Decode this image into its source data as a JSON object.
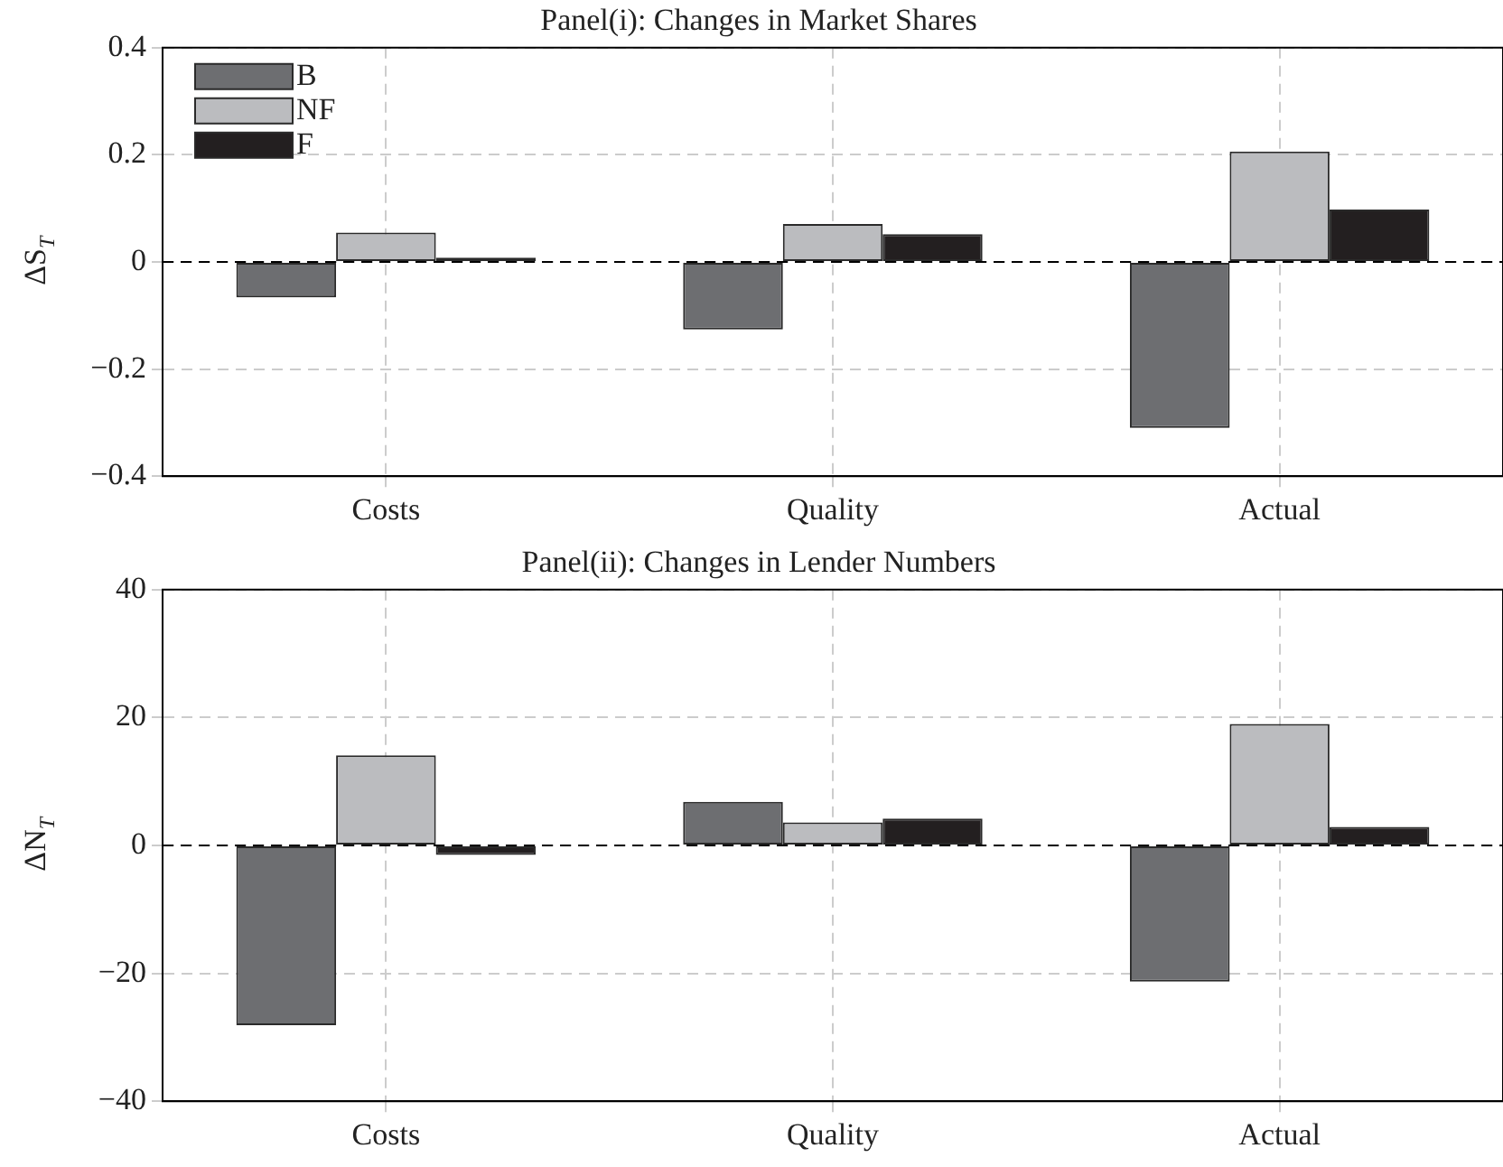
{
  "chart_data": [
    {
      "type": "bar",
      "title": "Panel(i): Changes in Market Shares",
      "ylabel": "ΔS$_{T}$",
      "categories": [
        "Costs",
        "Quality",
        "Actual"
      ],
      "series": [
        {
          "name": "B",
          "color": "#6d6e71",
          "values": [
            -0.066,
            -0.126,
            -0.31
          ]
        },
        {
          "name": "NF",
          "color": "#bbbcbf",
          "values": [
            0.055,
            0.071,
            0.206
          ]
        },
        {
          "name": "F",
          "color": "#231f20",
          "values": [
            0.008,
            0.052,
            0.098
          ]
        }
      ],
      "ylim": [
        -0.4,
        0.4
      ],
      "yticks": [
        {
          "value": -0.4,
          "label": "−0.4"
        },
        {
          "value": -0.2,
          "label": "−0.2"
        },
        0,
        0.2,
        0.4
      ],
      "grid": true,
      "legend": "top left",
      "ref_lines": [
        {
          "axis": "y",
          "value": 0,
          "color": "#000000",
          "line_style": "dashed"
        }
      ]
    },
    {
      "type": "bar",
      "title": "Panel(ii): Changes in Lender Numbers",
      "ylabel": "ΔN$_{T}$",
      "categories": [
        "Costs",
        "Quality",
        "Actual"
      ],
      "series": [
        {
          "color": "#6d6e71",
          "values": [
            -28.1,
            6.8,
            -21.3
          ]
        },
        {
          "color": "#bbbcbf",
          "values": [
            14.1,
            3.6,
            19.0
          ]
        },
        {
          "color": "#231f20",
          "values": [
            -1.5,
            4.2,
            2.9
          ]
        }
      ],
      "ylim": [
        -40,
        40
      ],
      "yticks": [
        {
          "value": -40,
          "label": "−40"
        },
        {
          "value": -20,
          "label": "−20"
        },
        0,
        20,
        40
      ],
      "grid": true,
      "legend": false,
      "ref_lines": [
        {
          "axis": "y",
          "value": 0,
          "color": "#000000",
          "line_style": "dashed"
        }
      ]
    }
  ]
}
